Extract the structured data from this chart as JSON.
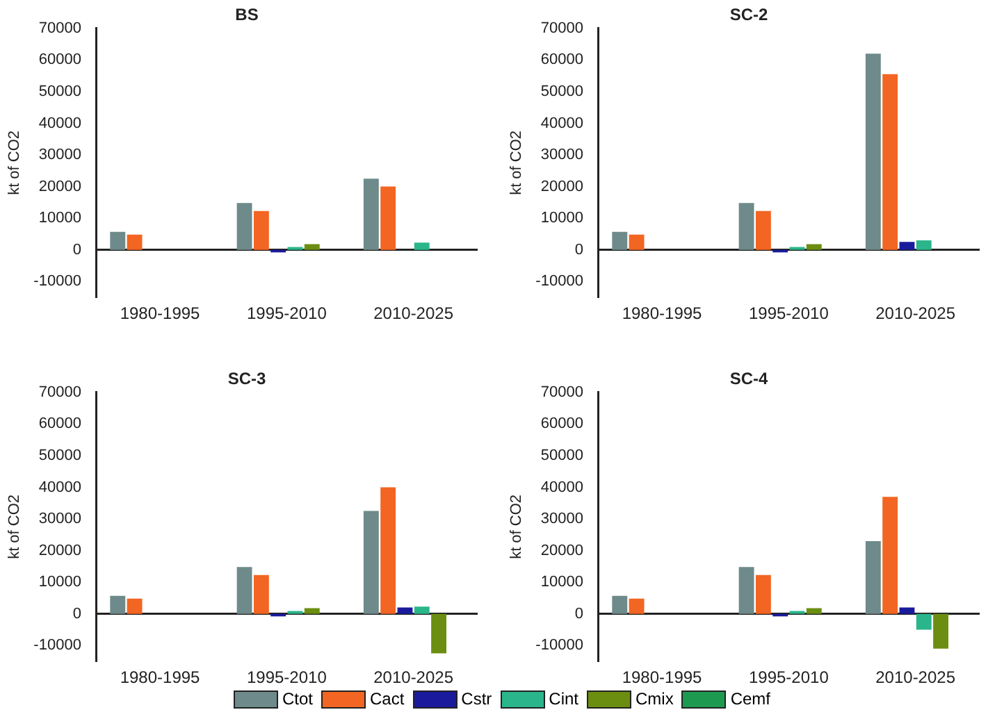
{
  "chart_data": [
    {
      "type": "bar",
      "title": "BS",
      "ylabel": "kt of CO2",
      "categories": [
        "1980-1995",
        "1995-2010",
        "2010-2025"
      ],
      "ylim": [
        -15000,
        70000
      ],
      "yticks": [
        -10000,
        0,
        10000,
        20000,
        30000,
        40000,
        50000,
        60000,
        70000
      ],
      "series": [
        {
          "color": "#6e8a8a",
          "values": [
            5700,
            14800,
            22500
          ]
        },
        {
          "color": "#f26522",
          "values": [
            4800,
            12300,
            20000
          ]
        },
        {
          "color": "#1a1a9c",
          "values": [
            0,
            -800,
            0
          ]
        },
        {
          "color": "#2bb58a",
          "values": [
            0,
            900,
            2300
          ]
        },
        {
          "color": "#6b8e10",
          "values": [
            0,
            1800,
            0
          ]
        },
        {
          "color": "#1e9a50",
          "values": [
            0,
            0,
            0
          ]
        }
      ]
    },
    {
      "type": "bar",
      "title": "SC-2",
      "ylabel": "kt of CO2",
      "categories": [
        "1980-1995",
        "1995-2010",
        "2010-2025"
      ],
      "ylim": [
        -15000,
        70000
      ],
      "yticks": [
        -10000,
        0,
        10000,
        20000,
        30000,
        40000,
        50000,
        60000,
        70000
      ],
      "series": [
        {
          "color": "#6e8a8a",
          "values": [
            5700,
            14800,
            62000
          ]
        },
        {
          "color": "#f26522",
          "values": [
            4800,
            12300,
            55500
          ]
        },
        {
          "color": "#1a1a9c",
          "values": [
            0,
            -800,
            2500
          ]
        },
        {
          "color": "#2bb58a",
          "values": [
            0,
            900,
            3000
          ]
        },
        {
          "color": "#6b8e10",
          "values": [
            0,
            1800,
            0
          ]
        },
        {
          "color": "#1e9a50",
          "values": [
            0,
            0,
            0
          ]
        }
      ]
    },
    {
      "type": "bar",
      "title": "SC-3",
      "ylabel": "kt of CO2",
      "categories": [
        "1980-1995",
        "1995-2010",
        "2010-2025"
      ],
      "ylim": [
        -15000,
        70000
      ],
      "yticks": [
        -10000,
        0,
        10000,
        20000,
        30000,
        40000,
        50000,
        60000,
        70000
      ],
      "series": [
        {
          "color": "#6e8a8a",
          "values": [
            5700,
            14800,
            32500
          ]
        },
        {
          "color": "#f26522",
          "values": [
            4800,
            12300,
            40000
          ]
        },
        {
          "color": "#1a1a9c",
          "values": [
            0,
            -800,
            2000
          ]
        },
        {
          "color": "#2bb58a",
          "values": [
            0,
            900,
            2300
          ]
        },
        {
          "color": "#6b8e10",
          "values": [
            0,
            1800,
            -12500
          ]
        },
        {
          "color": "#1e9a50",
          "values": [
            0,
            0,
            0
          ]
        }
      ]
    },
    {
      "type": "bar",
      "title": "SC-4",
      "ylabel": "kt of CO2",
      "categories": [
        "1980-1995",
        "1995-2010",
        "2010-2025"
      ],
      "ylim": [
        -15000,
        70000
      ],
      "yticks": [
        -10000,
        0,
        10000,
        20000,
        30000,
        40000,
        50000,
        60000,
        70000
      ],
      "legend": "bottom",
      "series": [
        {
          "name": "Ctot",
          "color": "#6e8a8a",
          "values": [
            5700,
            14800,
            23000
          ]
        },
        {
          "name": "Cact",
          "color": "#f26522",
          "values": [
            4800,
            12300,
            37000
          ]
        },
        {
          "name": "Cstr",
          "color": "#1a1a9c",
          "values": [
            0,
            -800,
            2000
          ]
        },
        {
          "name": "Cint",
          "color": "#2bb58a",
          "values": [
            0,
            900,
            -5000
          ]
        },
        {
          "name": "Cmix",
          "color": "#6b8e10",
          "values": [
            0,
            1800,
            -11000
          ]
        },
        {
          "name": "Cemf",
          "color": "#1e9a50",
          "values": [
            0,
            0,
            0
          ]
        }
      ]
    }
  ]
}
